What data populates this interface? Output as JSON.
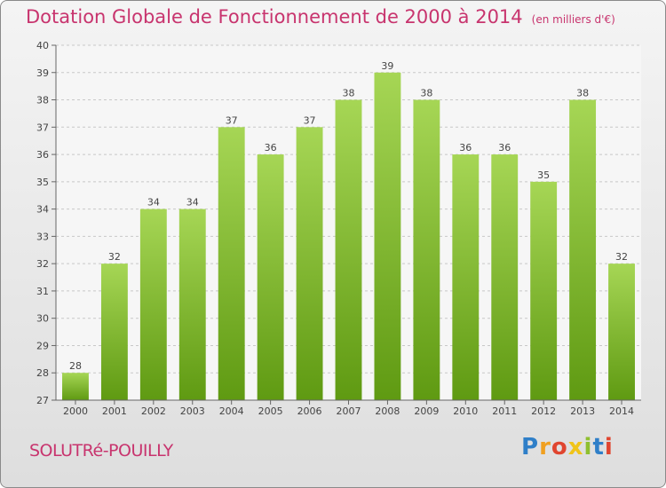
{
  "title": "Dotation Globale de Fonctionnement de 2000 à 2014",
  "unit": "(en milliers d'€)",
  "commune": "SOLUTRé-POUILLY",
  "logo": {
    "p": "P",
    "r": "r",
    "o": "o",
    "x": "x",
    "i": "i",
    "t": "t",
    "i2": "i"
  },
  "colors": {
    "title": "#c8346e",
    "bar_top": "#a6d655",
    "bar_bottom": "#5f9a12",
    "grid": "#c8c8c8"
  },
  "chart_data": {
    "type": "bar",
    "title": "Dotation Globale de Fonctionnement de 2000 à 2014",
    "xlabel": "",
    "ylabel": "(en milliers d'€)",
    "ylim": [
      27,
      40
    ],
    "yticks": [
      27,
      28,
      29,
      30,
      31,
      32,
      33,
      34,
      35,
      36,
      37,
      38,
      39,
      40
    ],
    "categories": [
      "2000",
      "2001",
      "2002",
      "2003",
      "2004",
      "2005",
      "2006",
      "2007",
      "2008",
      "2009",
      "2010",
      "2011",
      "2012",
      "2013",
      "2014"
    ],
    "values": [
      28,
      32,
      34,
      34,
      37,
      36,
      37,
      38,
      39,
      38,
      36,
      36,
      35,
      38,
      32
    ]
  }
}
